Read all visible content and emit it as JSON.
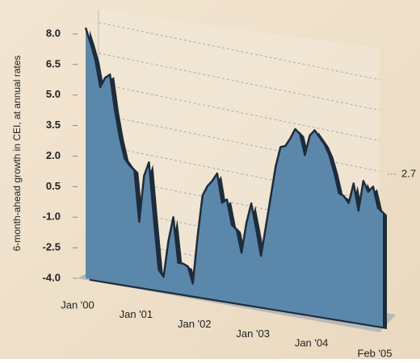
{
  "chart_data": {
    "type": "area",
    "y_label": "6-month-ahead growth in CEI, at annual rates",
    "annotation": "2.7",
    "categories": [
      "Jan '00",
      null,
      null,
      null,
      null,
      null,
      null,
      null,
      null,
      null,
      null,
      null,
      "Jan '01",
      null,
      null,
      null,
      null,
      null,
      null,
      null,
      null,
      null,
      null,
      null,
      "Jan '02",
      null,
      null,
      null,
      null,
      null,
      null,
      null,
      null,
      null,
      null,
      null,
      "Jan '03",
      null,
      null,
      null,
      null,
      null,
      null,
      null,
      null,
      null,
      null,
      null,
      "Jan '04",
      null,
      null,
      null,
      null,
      null,
      null,
      null,
      null,
      null,
      null,
      null,
      null,
      "Feb '05"
    ],
    "values": [
      8.3,
      7.6,
      6.8,
      5.5,
      6.0,
      6.2,
      4.5,
      3.2,
      2.2,
      1.9,
      1.7,
      -0.8,
      1.5,
      2.2,
      -0.5,
      -3.0,
      -3.3,
      -1.5,
      -0.3,
      -2.5,
      -2.5,
      -2.6,
      -3.4,
      -1.0,
      1.0,
      1.5,
      1.8,
      2.2,
      0.8,
      1.0,
      -0.2,
      -0.4,
      -1.5,
      0.0,
      1.0,
      -0.2,
      -1.5,
      0.0,
      1.5,
      3.0,
      4.0,
      4.1,
      4.5,
      5.0,
      4.8,
      3.8,
      4.8,
      5.1,
      4.8,
      4.5,
      4.0,
      3.2,
      2.2,
      2.1,
      1.8,
      2.8,
      1.5,
      3.0,
      2.5,
      2.8,
      1.8,
      1.6
    ],
    "color": "#5b87ab",
    "line_color": "#1e2c3a",
    "ylim": [
      -4.0,
      8.0
    ],
    "yticks": [
      {
        "value": -4.0,
        "label": "-4.0"
      },
      -2.5,
      {
        "value": -1.0,
        "label": "-1.0"
      },
      0.5,
      {
        "value": 2.0,
        "label": "2.0"
      },
      3.5,
      {
        "value": 5.0,
        "label": "5.0"
      },
      6.5,
      {
        "value": 8.0,
        "label": "8.0"
      }
    ],
    "grid": true
  }
}
